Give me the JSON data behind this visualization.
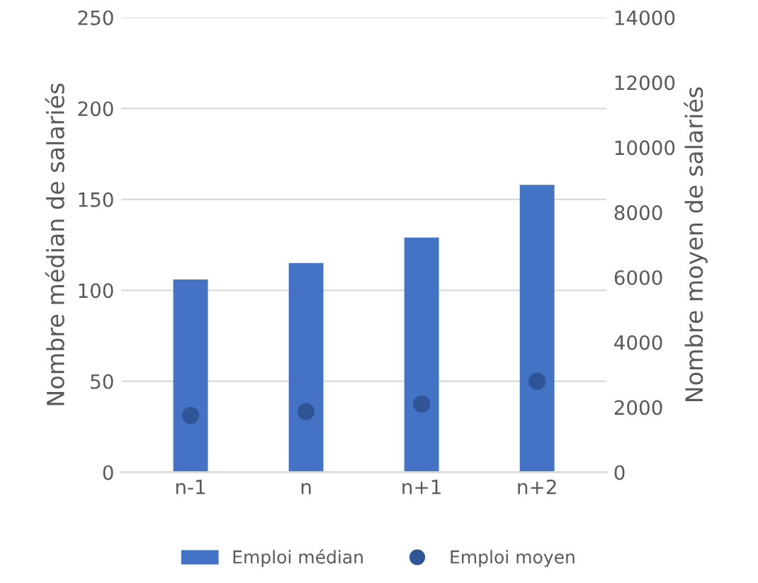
{
  "chart_data": {
    "type": "bar",
    "categories": [
      "n-1",
      "n",
      "n+1",
      "n+2"
    ],
    "ylabel": "Nombre médian de salariés",
    "y2label": "Nombre moyen de salariés",
    "series": [
      {
        "name": "Emploi médian",
        "color": "#4472c4",
        "values": [
          106,
          115,
          129,
          158
        ]
      },
      {
        "name": "Emploi moyen",
        "type": "scatter",
        "axis": "y2",
        "color": "#2f5597",
        "marker": "circle",
        "values": [
          1750,
          1870,
          2100,
          2800
        ]
      }
    ],
    "ylim": [
      0,
      250
    ],
    "yticks": [
      0,
      50,
      100,
      150,
      200,
      250
    ],
    "y2lim": [
      0,
      14000
    ],
    "y2ticks": [
      0,
      2000,
      4000,
      6000,
      8000,
      10000,
      12000,
      14000
    ],
    "grid": "y",
    "legend": "bottom"
  }
}
